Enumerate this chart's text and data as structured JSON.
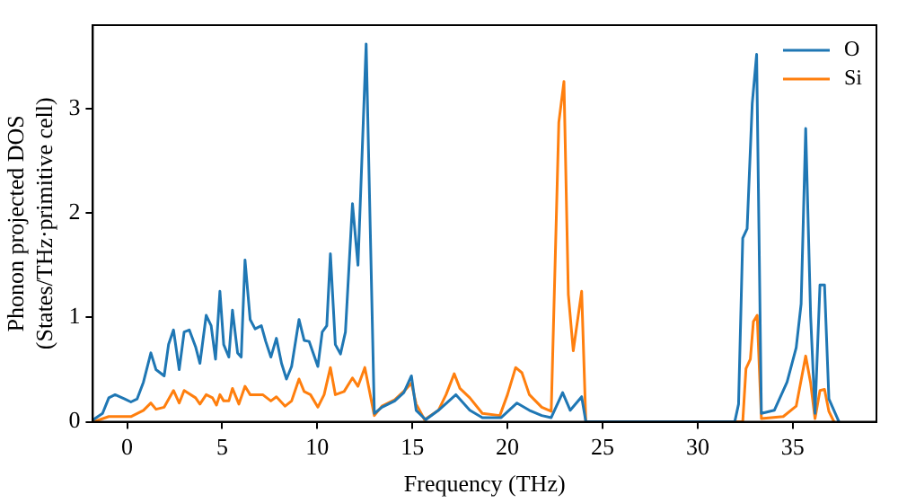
{
  "chart_data": {
    "type": "line",
    "xlabel": "Frequency (THz)",
    "ylabel": "Phonon projected DOS\n(States/THz·primitive cell)",
    "xlim": [
      -1.8,
      39.4
    ],
    "ylim": [
      0,
      3.8
    ],
    "xticks": [
      0,
      5,
      10,
      15,
      20,
      25,
      30,
      35
    ],
    "yticks": [
      0,
      1,
      2,
      3
    ],
    "grid": false,
    "legend": "top right",
    "marker": "none",
    "line_style": "solid",
    "series": [
      {
        "name": "O",
        "color": "#1f77b4",
        "x": [
          -1.78,
          -1.29,
          -0.96,
          -0.63,
          -0.13,
          0.2,
          0.53,
          0.86,
          1.25,
          1.52,
          1.95,
          2.18,
          2.44,
          2.74,
          3.0,
          3.27,
          3.6,
          3.83,
          4.16,
          4.42,
          4.65,
          4.88,
          5.08,
          5.35,
          5.54,
          5.81,
          6.0,
          6.2,
          6.47,
          6.73,
          7.06,
          7.29,
          7.56,
          7.85,
          8.12,
          8.38,
          8.65,
          9.04,
          9.31,
          9.57,
          10.03,
          10.26,
          10.5,
          10.69,
          10.95,
          11.22,
          11.48,
          11.85,
          12.14,
          12.57,
          13.0,
          13.4,
          14.07,
          14.55,
          14.95,
          15.2,
          15.7,
          16.37,
          17.29,
          18.02,
          18.68,
          19.67,
          20.5,
          21.15,
          21.8,
          22.3,
          22.9,
          23.3,
          23.9,
          24.12,
          31.95,
          32.15,
          32.37,
          32.6,
          32.87,
          33.1,
          33.35,
          34.03,
          34.7,
          35.18,
          35.44,
          35.68,
          35.94,
          36.17,
          36.43,
          36.67,
          36.9,
          37.43
        ],
        "values": [
          0.02,
          0.08,
          0.23,
          0.26,
          0.22,
          0.19,
          0.22,
          0.38,
          0.66,
          0.5,
          0.44,
          0.74,
          0.88,
          0.5,
          0.86,
          0.88,
          0.72,
          0.56,
          1.02,
          0.92,
          0.6,
          1.25,
          0.74,
          0.62,
          1.07,
          0.66,
          0.62,
          1.55,
          0.98,
          0.89,
          0.92,
          0.77,
          0.62,
          0.8,
          0.56,
          0.41,
          0.53,
          0.98,
          0.78,
          0.77,
          0.53,
          0.86,
          0.92,
          1.61,
          0.74,
          0.65,
          0.86,
          2.09,
          1.5,
          3.62,
          0.08,
          0.14,
          0.2,
          0.28,
          0.44,
          0.11,
          0.02,
          0.11,
          0.26,
          0.11,
          0.04,
          0.04,
          0.18,
          0.11,
          0.06,
          0.04,
          0.28,
          0.11,
          0.24,
          0.0,
          0.0,
          0.17,
          1.76,
          1.85,
          3.05,
          3.52,
          0.08,
          0.11,
          0.38,
          0.71,
          1.13,
          2.81,
          1.01,
          0.08,
          1.31,
          1.31,
          0.22,
          0.0
        ]
      },
      {
        "name": "Si",
        "color": "#ff7f0e",
        "x": [
          -1.78,
          -0.96,
          0.2,
          0.86,
          1.25,
          1.52,
          1.95,
          2.44,
          2.74,
          3.0,
          3.6,
          3.83,
          4.16,
          4.49,
          4.7,
          4.88,
          5.08,
          5.35,
          5.54,
          5.88,
          6.2,
          6.47,
          7.13,
          7.56,
          7.85,
          8.31,
          8.65,
          9.04,
          9.31,
          9.64,
          10.03,
          10.36,
          10.69,
          10.95,
          11.41,
          11.85,
          12.14,
          12.5,
          13.0,
          13.4,
          14.07,
          14.65,
          14.95,
          15.2,
          15.64,
          16.37,
          16.77,
          17.2,
          17.5,
          18.02,
          18.68,
          19.6,
          20.0,
          20.43,
          20.76,
          21.15,
          21.8,
          22.3,
          22.7,
          22.97,
          23.2,
          23.46,
          23.9,
          24.12,
          32.37,
          32.54,
          32.77,
          32.93,
          33.13,
          33.35,
          34.5,
          35.18,
          35.68,
          35.94,
          36.17,
          36.43,
          36.67,
          36.9,
          37.17
        ],
        "values": [
          0.0,
          0.05,
          0.05,
          0.11,
          0.18,
          0.12,
          0.14,
          0.3,
          0.18,
          0.3,
          0.23,
          0.17,
          0.26,
          0.23,
          0.16,
          0.26,
          0.2,
          0.2,
          0.32,
          0.17,
          0.34,
          0.26,
          0.26,
          0.2,
          0.24,
          0.15,
          0.2,
          0.41,
          0.29,
          0.26,
          0.14,
          0.26,
          0.52,
          0.26,
          0.29,
          0.42,
          0.34,
          0.52,
          0.06,
          0.15,
          0.21,
          0.31,
          0.37,
          0.17,
          0.02,
          0.11,
          0.26,
          0.46,
          0.32,
          0.23,
          0.08,
          0.06,
          0.26,
          0.52,
          0.47,
          0.26,
          0.14,
          0.1,
          2.87,
          3.26,
          1.22,
          0.68,
          1.25,
          0.0,
          0.0,
          0.51,
          0.6,
          0.96,
          1.02,
          0.03,
          0.05,
          0.15,
          0.63,
          0.37,
          0.03,
          0.3,
          0.31,
          0.1,
          0.0
        ]
      }
    ]
  }
}
